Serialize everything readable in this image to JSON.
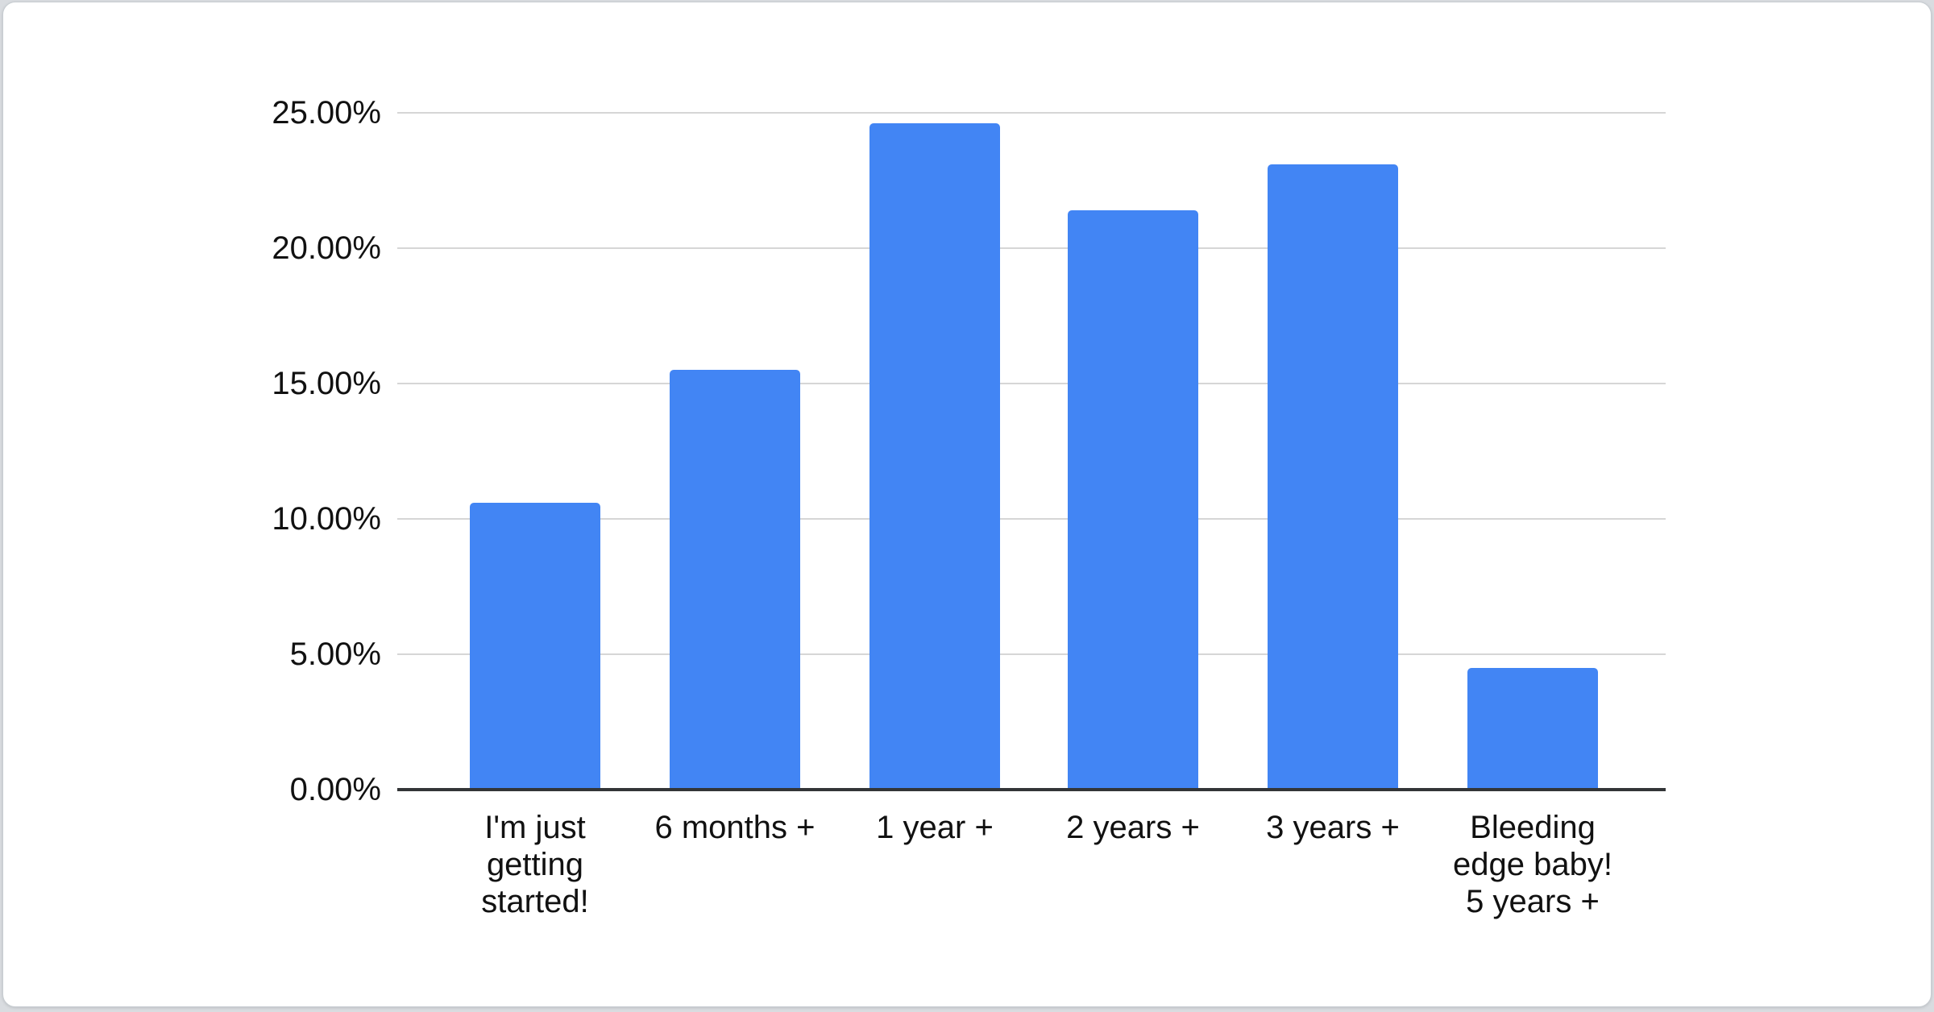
{
  "page": {
    "background_color": "#d9dce0",
    "card_background": "#ffffff",
    "card_border_color": "#c8cdd2"
  },
  "chart_data": {
    "type": "bar",
    "title": "",
    "xlabel": "",
    "ylabel": "",
    "categories": [
      "I'm just\ngetting\nstarted!",
      "6 months +",
      "1 year +",
      "2 years +",
      "3 years +",
      "Bleeding\nedge baby!\n5 years +"
    ],
    "values": [
      10.6,
      15.5,
      24.6,
      21.4,
      23.1,
      4.5
    ],
    "value_unit": "%",
    "ylim": [
      0,
      25
    ],
    "yticks": [
      0,
      5,
      10,
      15,
      20,
      25
    ],
    "ytick_labels": [
      "0.00%",
      "5.00%",
      "10.00%",
      "15.00%",
      "20.00%",
      "25.00%"
    ],
    "grid": "horizontal",
    "legend": "none",
    "bar_color": "#4285f4",
    "gridline_color": "#d6d6d6",
    "axis_line_color": "#333537",
    "text_color": "#111111"
  }
}
